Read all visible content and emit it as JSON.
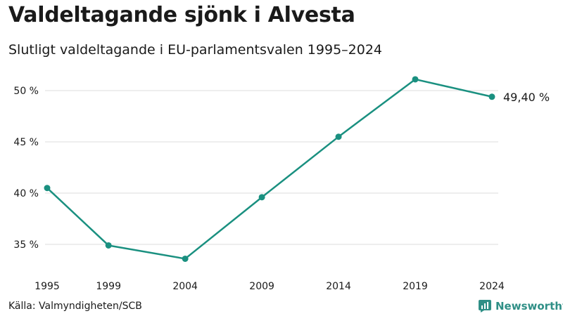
{
  "header": {
    "title": "Valdeltagande sjönk i Alvesta",
    "subtitle": "Slutligt valdeltagande i EU-parlamentsvalen 1995–2024"
  },
  "footer": {
    "source": "Källa: Valmyndigheten/SCB",
    "brand": "Newsworthy"
  },
  "colors": {
    "line": "#1a9080",
    "grid": "#dddddd",
    "text": "#1a1a1a",
    "brand": "#2f8f86"
  },
  "chart_data": {
    "type": "line",
    "title": "Valdeltagande sjönk i Alvesta",
    "subtitle": "Slutligt valdeltagande i EU-parlamentsvalen 1995–2024",
    "xlabel": "",
    "ylabel": "",
    "categories": [
      "1995",
      "1999",
      "2004",
      "2009",
      "2014",
      "2019",
      "2024"
    ],
    "x": [
      1995,
      1999,
      2004,
      2009,
      2014,
      2019,
      2024
    ],
    "values": [
      40.5,
      34.9,
      33.6,
      39.6,
      45.5,
      51.1,
      49.4
    ],
    "yticks": [
      35,
      40,
      45,
      50
    ],
    "ytick_labels": [
      "35 %",
      "40 %",
      "45 %",
      "50 %"
    ],
    "ylim": [
      33,
      51.5
    ],
    "grid": true,
    "end_label": "49,40 %"
  }
}
